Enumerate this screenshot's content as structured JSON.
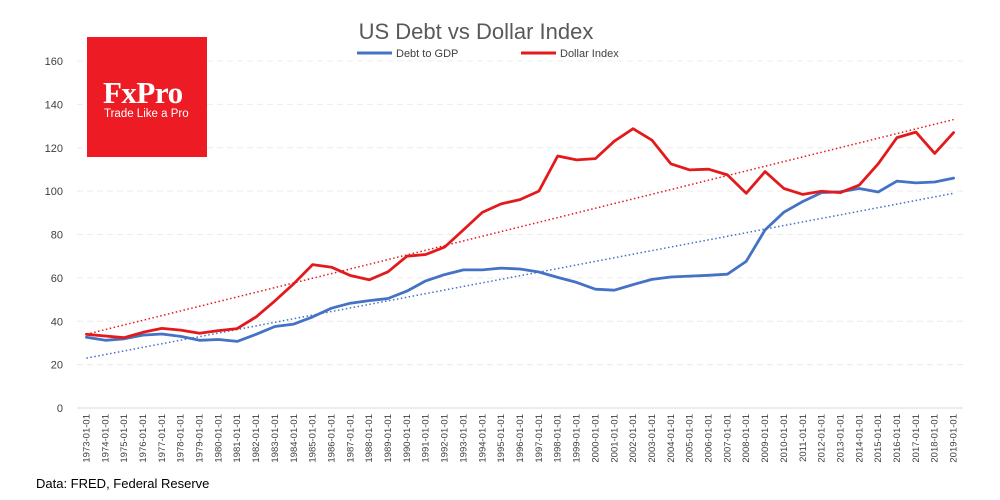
{
  "source_note": "Data: FRED, Federal Reserve",
  "logo": {
    "name": "FxPro",
    "tagline": "Trade Like a Pro",
    "color": "#ed1c24"
  },
  "chart_data": {
    "type": "line",
    "title": "US Debt vs Dollar Index",
    "xlabel": "",
    "ylabel": "",
    "ylim": [
      0,
      160
    ],
    "yticks": [
      0,
      20,
      40,
      60,
      80,
      100,
      120,
      140,
      160
    ],
    "grid": true,
    "legend_position": "top-center",
    "categories": [
      "1973-01-01",
      "1974-01-01",
      "1975-01-01",
      "1976-01-01",
      "1977-01-01",
      "1978-01-01",
      "1979-01-01",
      "1980-01-01",
      "1981-01-01",
      "1982-01-01",
      "1983-01-01",
      "1984-01-01",
      "1985-01-01",
      "1986-01-01",
      "1987-01-01",
      "1988-01-01",
      "1989-01-01",
      "1990-01-01",
      "1991-01-01",
      "1992-01-01",
      "1993-01-01",
      "1994-01-01",
      "1995-01-01",
      "1996-01-01",
      "1997-01-01",
      "1998-01-01",
      "1999-01-01",
      "2000-01-01",
      "2001-01-01",
      "2002-01-01",
      "2003-01-01",
      "2004-01-01",
      "2005-01-01",
      "2006-01-01",
      "2007-01-01",
      "2008-01-01",
      "2009-01-01",
      "2010-01-01",
      "2011-01-01",
      "2012-01-01",
      "2013-01-01",
      "2014-01-01",
      "2015-01-01",
      "2016-01-01",
      "2017-01-01",
      "2018-01-01",
      "2019-01-01"
    ],
    "series": [
      {
        "name": "Debt to GDP",
        "color": "#4472c4",
        "values": [
          32.6,
          31.2,
          31.9,
          33.6,
          34.1,
          33.0,
          31.2,
          31.6,
          30.7,
          34.0,
          37.6,
          38.7,
          42.0,
          46.0,
          48.3,
          49.5,
          50.5,
          53.9,
          58.6,
          61.5,
          63.7,
          63.7,
          64.5,
          64.1,
          62.7,
          60.2,
          57.9,
          54.8,
          54.3,
          56.9,
          59.3,
          60.4,
          60.8,
          61.2,
          61.7,
          67.6,
          82.1,
          90.3,
          95.2,
          99.3,
          99.7,
          101.2,
          99.6,
          104.6,
          103.8,
          104.2,
          106.0
        ],
        "trendline": {
          "start": 23.0,
          "end": 99.0,
          "style": "dotted"
        }
      },
      {
        "name": "Dollar Index",
        "color": "#e31a1c",
        "values": [
          34.0,
          33.2,
          32.4,
          34.9,
          36.7,
          35.9,
          34.5,
          35.7,
          36.6,
          42.0,
          49.4,
          57.3,
          66.1,
          64.9,
          61.1,
          59.1,
          62.8,
          70.0,
          70.8,
          74.2,
          82.1,
          90.2,
          94.1,
          96.1,
          100.0,
          116.2,
          114.4,
          115.0,
          123.0,
          128.8,
          123.5,
          112.6,
          109.8,
          110.1,
          107.5,
          99.0,
          109.0,
          101.2,
          98.5,
          99.9,
          99.3,
          102.8,
          112.6,
          124.7,
          127.2,
          117.4,
          127.0
        ],
        "trendline": {
          "start": 34.0,
          "end": 133.0,
          "style": "dotted"
        }
      }
    ]
  }
}
